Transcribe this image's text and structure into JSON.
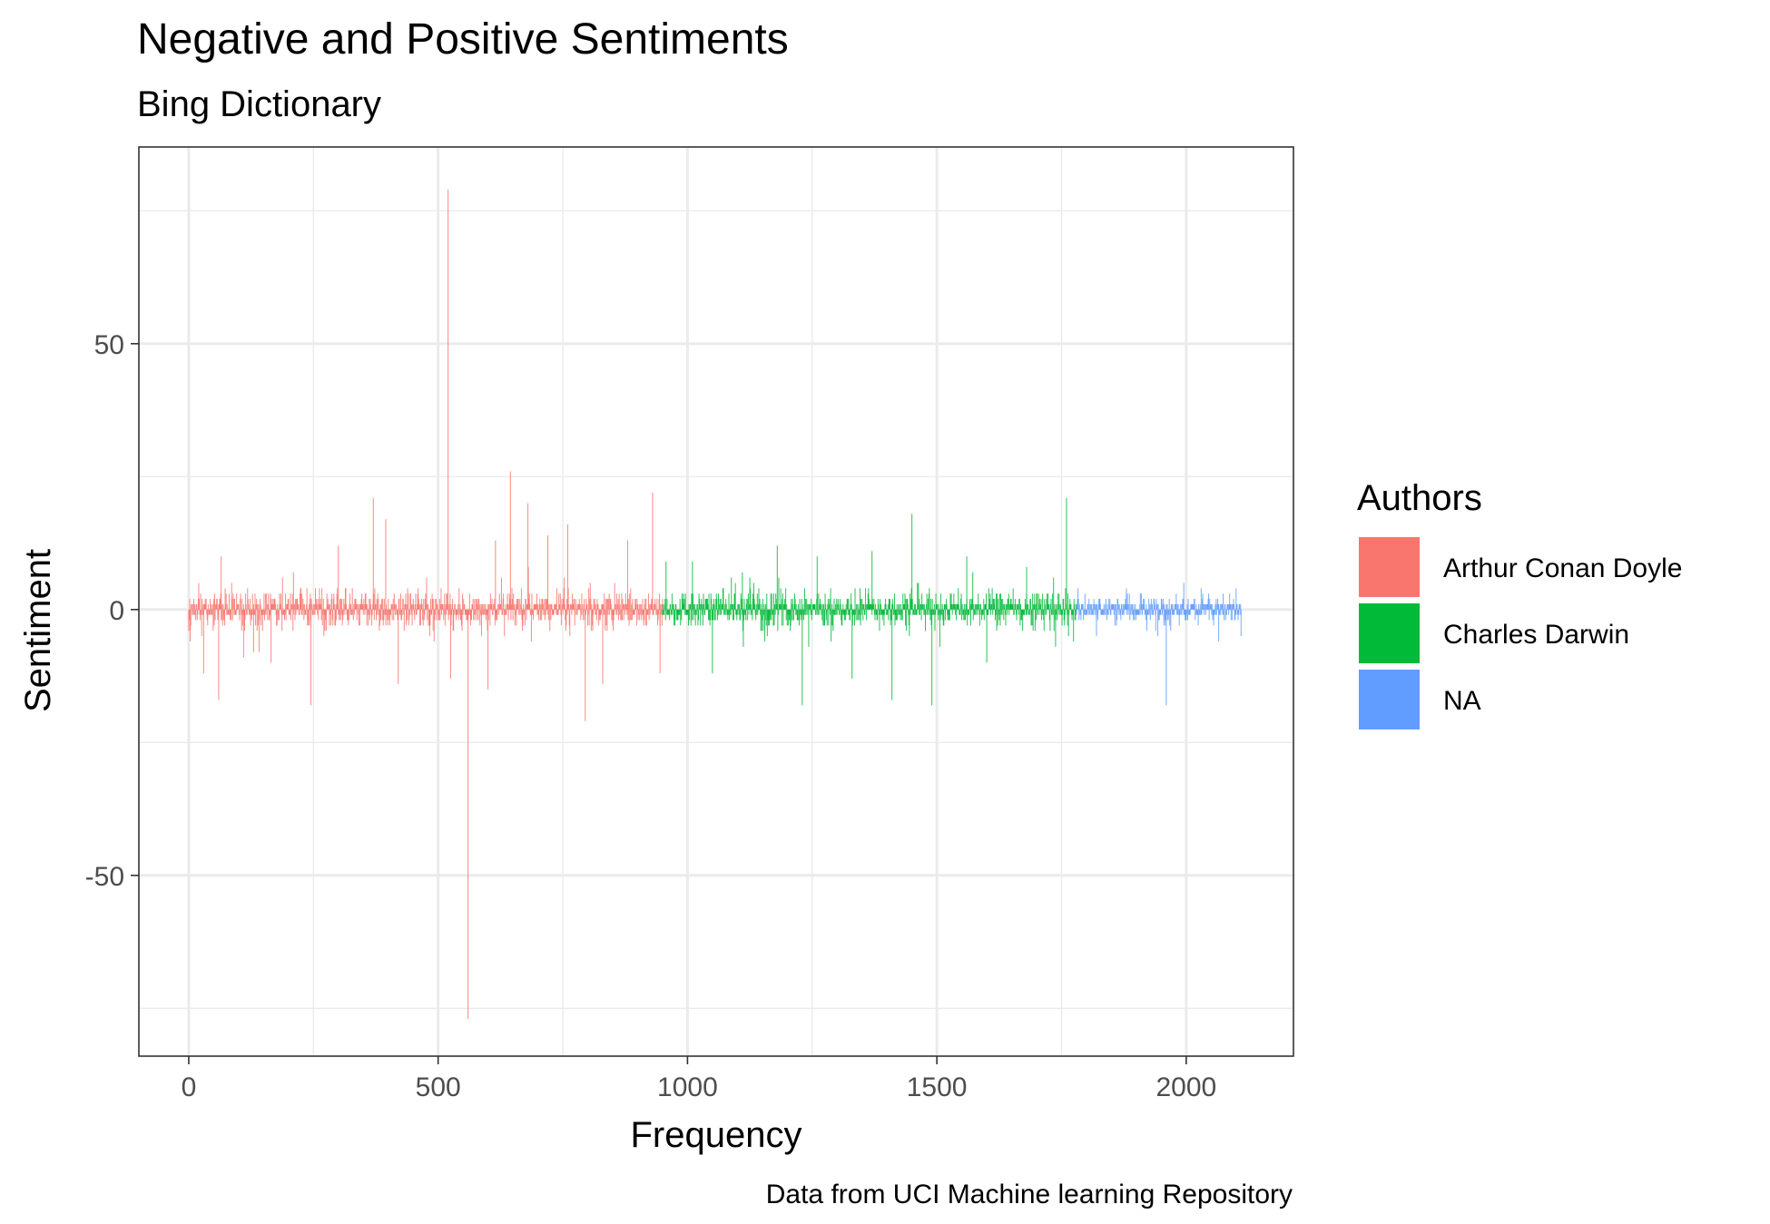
{
  "chart_data": {
    "type": "bar",
    "title": "Negative and Positive Sentiments",
    "subtitle": "Bing Dictionary",
    "xlabel": "Frequency",
    "ylabel": "Sentiment",
    "caption": "Data from UCI Machine learning Repository",
    "xlim": [
      -100,
      2215
    ],
    "ylim": [
      -84,
      87
    ],
    "x_ticks": [
      0,
      500,
      1000,
      1500,
      2000
    ],
    "x_tick_labels": [
      "0",
      "500",
      "1000",
      "1500",
      "2000"
    ],
    "y_ticks": [
      -50,
      0,
      50
    ],
    "y_tick_labels": [
      "-50",
      "0",
      "50"
    ],
    "grid": true,
    "legend": {
      "title": "Authors",
      "position": "right",
      "entries": [
        {
          "label": "Arthur Conan Doyle",
          "color": "#F8766D"
        },
        {
          "label": "Charles Darwin",
          "color": "#00BA38"
        },
        {
          "label": "NA",
          "color": "#619CFF"
        }
      ]
    },
    "series": [
      {
        "name": "Arthur Conan Doyle",
        "color": "#F8766D",
        "x_range": [
          0,
          950
        ],
        "notable_points": [
          {
            "x": 3,
            "y": -6
          },
          {
            "x": 20,
            "y": 5
          },
          {
            "x": 30,
            "y": -12
          },
          {
            "x": 60,
            "y": -17
          },
          {
            "x": 65,
            "y": 10
          },
          {
            "x": 110,
            "y": -9
          },
          {
            "x": 130,
            "y": -8
          },
          {
            "x": 165,
            "y": -10
          },
          {
            "x": 210,
            "y": 7
          },
          {
            "x": 245,
            "y": -18
          },
          {
            "x": 300,
            "y": 12
          },
          {
            "x": 370,
            "y": 21
          },
          {
            "x": 395,
            "y": 17
          },
          {
            "x": 420,
            "y": -14
          },
          {
            "x": 520,
            "y": 79
          },
          {
            "x": 525,
            "y": -13
          },
          {
            "x": 560,
            "y": -77
          },
          {
            "x": 600,
            "y": -15
          },
          {
            "x": 615,
            "y": 13
          },
          {
            "x": 645,
            "y": 26
          },
          {
            "x": 680,
            "y": 20
          },
          {
            "x": 720,
            "y": 14
          },
          {
            "x": 760,
            "y": 16
          },
          {
            "x": 795,
            "y": -21
          },
          {
            "x": 830,
            "y": -14
          },
          {
            "x": 880,
            "y": 13
          },
          {
            "x": 930,
            "y": 22
          },
          {
            "x": 945,
            "y": -12
          }
        ]
      },
      {
        "name": "Charles Darwin",
        "color": "#00BA38",
        "x_range": [
          950,
          1780
        ],
        "notable_points": [
          {
            "x": 1010,
            "y": 9
          },
          {
            "x": 1050,
            "y": -12
          },
          {
            "x": 1110,
            "y": 7
          },
          {
            "x": 1180,
            "y": 12
          },
          {
            "x": 1230,
            "y": -18
          },
          {
            "x": 1260,
            "y": 10
          },
          {
            "x": 1330,
            "y": -13
          },
          {
            "x": 1370,
            "y": 11
          },
          {
            "x": 1410,
            "y": -17
          },
          {
            "x": 1450,
            "y": 18
          },
          {
            "x": 1490,
            "y": -18
          },
          {
            "x": 1560,
            "y": 10
          },
          {
            "x": 1600,
            "y": -10
          },
          {
            "x": 1680,
            "y": 8
          },
          {
            "x": 1760,
            "y": 21
          }
        ]
      },
      {
        "name": "NA",
        "color": "#619CFF",
        "x_range": [
          1780,
          2110
        ],
        "notable_points": [
          {
            "x": 1820,
            "y": -5
          },
          {
            "x": 1880,
            "y": 4
          },
          {
            "x": 1960,
            "y": -18
          },
          {
            "x": 1995,
            "y": 5
          },
          {
            "x": 2030,
            "y": 4
          },
          {
            "x": 2065,
            "y": -6
          },
          {
            "x": 2100,
            "y": 4
          }
        ]
      }
    ]
  }
}
